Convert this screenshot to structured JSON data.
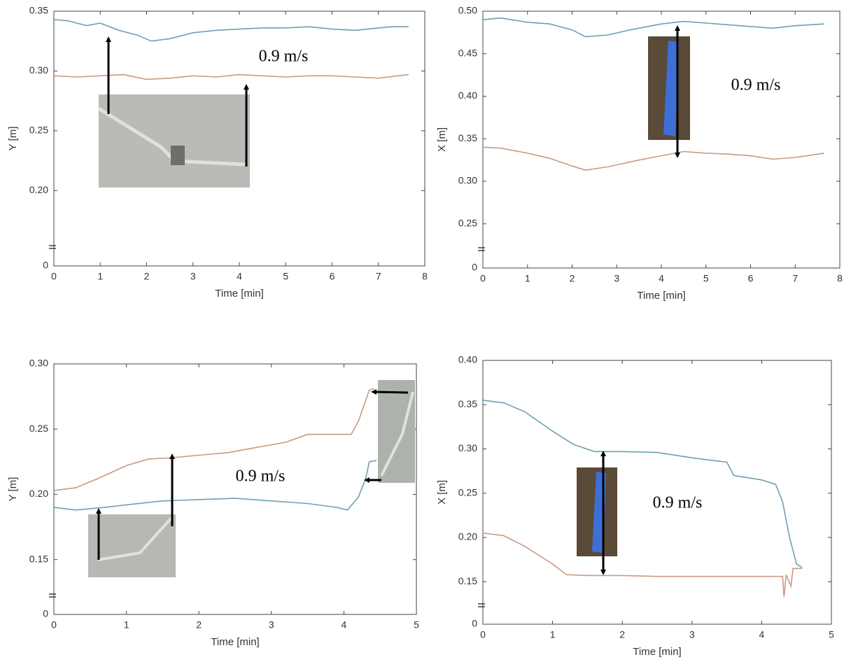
{
  "chart_data": [
    {
      "type": "line",
      "xlabel": "Time [min]",
      "ylabel": "Y [m]",
      "annotation": "0.9 m/s",
      "xlim": [
        0,
        8
      ],
      "xticks": [
        0,
        1,
        2,
        3,
        4,
        5,
        6,
        7,
        8
      ],
      "ylim": [
        0.137,
        0.35
      ],
      "yticks": [
        0,
        {
          "value": 0.2,
          "label": "0.20"
        },
        {
          "value": 0.25,
          "label": "0.25"
        },
        {
          "value": 0.3,
          "label": "0.30"
        },
        {
          "value": 0.35,
          "label": "0.35"
        }
      ],
      "axis_break": true,
      "series": [
        {
          "color": "#6f9fb4",
          "x": [
            0,
            0.3,
            0.7,
            1,
            1.4,
            1.8,
            2.1,
            2.5,
            3,
            3.5,
            4,
            4.5,
            5,
            5.5,
            6,
            6.5,
            7,
            7.3,
            7.65
          ],
          "values": [
            0.343,
            0.342,
            0.338,
            0.34,
            0.334,
            0.33,
            0.325,
            0.327,
            0.332,
            0.334,
            0.335,
            0.336,
            0.336,
            0.337,
            0.335,
            0.334,
            0.336,
            0.337,
            0.337
          ]
        },
        {
          "color": "#c99a80",
          "x": [
            0,
            0.5,
            1,
            1.5,
            2,
            2.5,
            3,
            3.5,
            4,
            4.5,
            5,
            5.5,
            6,
            6.5,
            7,
            7.65
          ],
          "values": [
            0.296,
            0.295,
            0.296,
            0.297,
            0.293,
            0.294,
            0.296,
            0.295,
            0.297,
            0.296,
            0.295,
            0.296,
            0.296,
            0.295,
            0.294,
            0.297
          ]
        }
      ]
    },
    {
      "type": "line",
      "xlabel": "Time [min]",
      "ylabel": "X [m]",
      "annotation": "0.9 m/s",
      "xlim": [
        0,
        8
      ],
      "xticks": [
        0,
        1,
        2,
        3,
        4,
        5,
        6,
        7,
        8
      ],
      "ylim": [
        0.198,
        0.5
      ],
      "yticks": [
        0,
        {
          "value": 0.25,
          "label": "0.25"
        },
        {
          "value": 0.3,
          "label": "0.30"
        },
        {
          "value": 0.35,
          "label": "0.35"
        },
        {
          "value": 0.4,
          "label": "0.40"
        },
        {
          "value": 0.45,
          "label": "0.45"
        },
        {
          "value": 0.5,
          "label": "0.50"
        }
      ],
      "axis_break": true,
      "series": [
        {
          "color": "#6f9fb4",
          "x": [
            0,
            0.4,
            1,
            1.5,
            2,
            2.3,
            2.8,
            3.3,
            4,
            4.5,
            5,
            5.5,
            6,
            6.5,
            7,
            7.65
          ],
          "values": [
            0.49,
            0.492,
            0.487,
            0.485,
            0.478,
            0.47,
            0.472,
            0.478,
            0.485,
            0.488,
            0.486,
            0.484,
            0.482,
            0.48,
            0.483,
            0.485
          ]
        },
        {
          "color": "#c99a80",
          "x": [
            0,
            0.4,
            1,
            1.5,
            2,
            2.3,
            2.8,
            3.5,
            4,
            4.5,
            5,
            5.5,
            6,
            6.5,
            7,
            7.65
          ],
          "values": [
            0.34,
            0.339,
            0.333,
            0.327,
            0.318,
            0.313,
            0.317,
            0.325,
            0.33,
            0.335,
            0.333,
            0.332,
            0.33,
            0.326,
            0.328,
            0.333
          ]
        }
      ]
    },
    {
      "type": "line",
      "xlabel": "Time [min]",
      "ylabel": "Y [m]",
      "annotation": "0.9 m/s",
      "xlim": [
        0,
        5
      ],
      "xticks": [
        0,
        1,
        2,
        3,
        4,
        5
      ],
      "ylim": [
        0.108,
        0.3
      ],
      "yticks": [
        0,
        {
          "value": 0.15,
          "label": "0.15"
        },
        {
          "value": 0.2,
          "label": "0.20"
        },
        {
          "value": 0.25,
          "label": "0.25"
        },
        {
          "value": 0.3,
          "label": "0.30"
        }
      ],
      "axis_break": true,
      "series": [
        {
          "color": "#c99a80",
          "x": [
            0,
            0.3,
            0.6,
            1,
            1.3,
            1.6,
            2,
            2.4,
            2.8,
            3.2,
            3.5,
            4.1,
            4.2,
            4.3,
            4.35,
            4.42
          ],
          "values": [
            0.203,
            0.205,
            0.212,
            0.222,
            0.227,
            0.228,
            0.23,
            0.232,
            0.236,
            0.24,
            0.246,
            0.246,
            0.256,
            0.272,
            0.28,
            0.281
          ]
        },
        {
          "color": "#6f9fb4",
          "x": [
            0,
            0.3,
            0.7,
            1,
            1.5,
            2,
            2.5,
            3,
            3.5,
            3.9,
            4.05,
            4.2,
            4.3,
            4.35,
            4.45
          ],
          "values": [
            0.19,
            0.188,
            0.19,
            0.192,
            0.195,
            0.196,
            0.197,
            0.195,
            0.193,
            0.19,
            0.188,
            0.198,
            0.212,
            0.225,
            0.226
          ]
        }
      ]
    },
    {
      "type": "line",
      "xlabel": "Time [min]",
      "ylabel": "X [m]",
      "annotation": "0.9 m/s",
      "xlim": [
        0,
        5
      ],
      "xticks": [
        0,
        1,
        2,
        3,
        4,
        5
      ],
      "ylim": [
        0.102,
        0.4
      ],
      "yticks": [
        0,
        {
          "value": 0.15,
          "label": "0.15"
        },
        {
          "value": 0.2,
          "label": "0.20"
        },
        {
          "value": 0.25,
          "label": "0.25"
        },
        {
          "value": 0.3,
          "label": "0.30"
        },
        {
          "value": 0.35,
          "label": "0.35"
        },
        {
          "value": 0.4,
          "label": "0.40"
        }
      ],
      "axis_break": true,
      "series": [
        {
          "color": "#6f9fb4",
          "x": [
            0,
            0.3,
            0.6,
            1,
            1.3,
            1.6,
            2,
            2.5,
            3,
            3.5,
            3.6,
            4,
            4.2,
            4.3,
            4.4,
            4.5,
            4.58
          ],
          "values": [
            0.355,
            0.352,
            0.342,
            0.32,
            0.305,
            0.297,
            0.297,
            0.296,
            0.29,
            0.285,
            0.27,
            0.265,
            0.26,
            0.24,
            0.2,
            0.17,
            0.166
          ]
        },
        {
          "color": "#c99a80",
          "x": [
            0,
            0.3,
            0.6,
            1,
            1.2,
            1.5,
            2,
            2.5,
            3,
            3.5,
            4,
            4.3,
            4.32,
            4.35,
            4.42,
            4.45,
            4.58
          ],
          "values": [
            0.205,
            0.202,
            0.19,
            0.17,
            0.158,
            0.157,
            0.157,
            0.156,
            0.156,
            0.156,
            0.156,
            0.156,
            0.133,
            0.158,
            0.145,
            0.165,
            0.165
          ]
        }
      ]
    }
  ]
}
